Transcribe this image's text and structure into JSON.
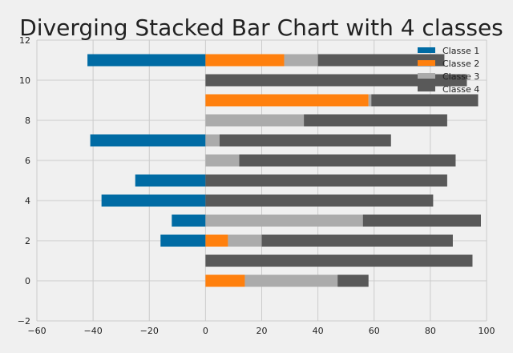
{
  "chart_data": {
    "type": "bar",
    "orientation": "horizontal",
    "stacking": "diverging",
    "title": "Diverging Stacked Bar Chart with 4 classes",
    "xlabel": "",
    "ylabel": "",
    "xlim": [
      -60,
      100
    ],
    "ylim": [
      -2,
      12
    ],
    "xticks": [
      -60,
      -40,
      -20,
      0,
      20,
      40,
      60,
      80,
      100
    ],
    "yticks": [
      -2,
      0,
      2,
      4,
      6,
      8,
      10,
      12
    ],
    "grid": true,
    "legend_position": "top-right",
    "y": [
      0,
      1,
      2,
      3,
      4,
      5,
      6,
      7,
      8,
      9,
      10,
      11
    ],
    "series": [
      {
        "name": "Classe 1",
        "color": "#006ba4",
        "values": [
          0,
          0,
          -16,
          -12,
          -37,
          -25,
          0,
          -41,
          0,
          0,
          0,
          -42
        ]
      },
      {
        "name": "Classe 2",
        "color": "#ff800e",
        "values": [
          14,
          0,
          8,
          0,
          0,
          0,
          0,
          0,
          0,
          58,
          0,
          28
        ]
      },
      {
        "name": "Classe 3",
        "color": "#ababab",
        "values": [
          33,
          0,
          12,
          56,
          0,
          0,
          12,
          5,
          35,
          1,
          0,
          12
        ]
      },
      {
        "name": "Classe 4",
        "color": "#595959",
        "values": [
          11,
          95,
          68,
          42,
          81,
          86,
          77,
          61,
          51,
          38,
          93,
          45
        ]
      }
    ]
  }
}
